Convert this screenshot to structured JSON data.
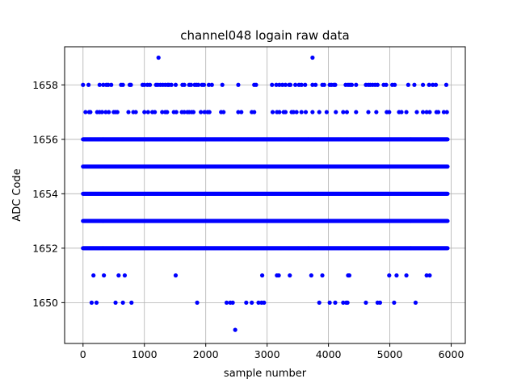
{
  "chart_data": {
    "type": "scatter",
    "title": "channel048 logain raw data",
    "xlabel": "sample number",
    "ylabel": "ADC Code",
    "xlim": [
      -300,
      6230
    ],
    "ylim": [
      1648.5,
      1659.4
    ],
    "xticks": [
      0,
      1000,
      2000,
      3000,
      4000,
      5000,
      6000
    ],
    "yticks": [
      1650,
      1652,
      1654,
      1656,
      1658
    ],
    "grid": true,
    "marker_color": "#0000ff",
    "x_range": [
      0,
      5940
    ],
    "dense_levels": [
      1652,
      1653,
      1654,
      1655,
      1656
    ],
    "sparse_points": {
      "1659": [
        1230,
        3740
      ],
      "1658": [
        0,
        90,
        270,
        330,
        380,
        410,
        460,
        620,
        650,
        760,
        780,
        970,
        1000,
        1050,
        1090,
        1190,
        1220,
        1260,
        1300,
        1340,
        1380,
        1400,
        1440,
        1510,
        1620,
        1650,
        1730,
        1760,
        1820,
        1850,
        1880,
        1940,
        1970,
        2050,
        2100,
        2270,
        2530,
        2790,
        2820,
        3080,
        3150,
        3200,
        3250,
        3300,
        3360,
        3380,
        3460,
        3520,
        3560,
        3620,
        3740,
        3790,
        3900,
        3930,
        4020,
        4050,
        4090,
        4110,
        4280,
        4320,
        4350,
        4380,
        4450,
        4610,
        4650,
        4680,
        4720,
        4760,
        4800,
        4900,
        4940,
        5040,
        5080,
        5300,
        5400,
        5540,
        5640,
        5700,
        5750,
        5920
      ],
      "1657": [
        40,
        100,
        120,
        230,
        270,
        310,
        370,
        420,
        500,
        530,
        560,
        740,
        820,
        860,
        1000,
        1060,
        1130,
        1170,
        1290,
        1340,
        1370,
        1480,
        1520,
        1610,
        1650,
        1700,
        1730,
        1770,
        1800,
        1920,
        1980,
        2030,
        2060,
        2250,
        2290,
        2530,
        2580,
        2750,
        2790,
        3090,
        3160,
        3200,
        3270,
        3300,
        3400,
        3430,
        3480,
        3560,
        3630,
        3740,
        3850,
        3970,
        4120,
        4240,
        4300,
        4450,
        4650,
        4780,
        4950,
        4990,
        5150,
        5190,
        5270,
        5440,
        5540,
        5600,
        5650,
        5760,
        5790,
        5880,
        5930
      ],
      "1651": [
        170,
        340,
        580,
        680,
        1510,
        2920,
        3160,
        3190,
        3370,
        3720,
        3900,
        4320,
        4340,
        4990,
        5110,
        5270,
        5600,
        5650
      ],
      "1650": [
        140,
        220,
        530,
        650,
        790,
        1860,
        2340,
        2400,
        2440,
        2660,
        2750,
        2860,
        2910,
        2950,
        3850,
        4020,
        4110,
        4240,
        4290,
        4310,
        4610,
        4800,
        4840,
        5070,
        5420
      ],
      "1649": [
        2480
      ]
    }
  }
}
